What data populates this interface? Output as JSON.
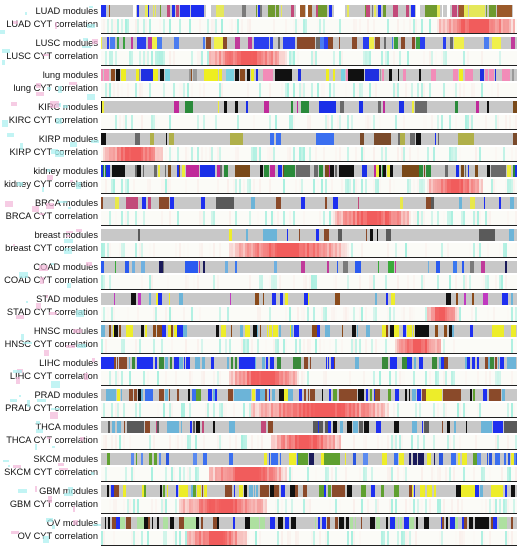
{
  "blocks": [
    {
      "id": "luad",
      "modules_label": "LUAD modules",
      "cyt_label": "LUAD CYT correlation",
      "palette": [
        "#1e2ff0",
        "#e5e85a",
        "#7a7a7a",
        "#6f9a2f",
        "#9b5a2a",
        "#c24a7a",
        "#ffffff"
      ],
      "hot": [
        [
          0.8,
          1.0
        ]
      ]
    },
    {
      "id": "lusc",
      "modules_label": "LUSC modules",
      "cyt_label": "LUSC CYT correlation",
      "palette": [
        "#2a3ff0",
        "#4a7cf0",
        "#f0f04a",
        "#6a6a6a",
        "#c03a9a",
        "#8a4a2a",
        "#3aa040"
      ],
      "hot": [
        [
          0.25,
          0.45
        ]
      ]
    },
    {
      "id": "lung",
      "modules_label": "lung modules",
      "cyt_label": "lung CYT correlation",
      "palette": [
        "#eeee20",
        "#1f2fe0",
        "#8a4a1f",
        "#111111",
        "#f28cb8",
        "#7ad2e0",
        "#9a9a9a"
      ],
      "hot": []
    },
    {
      "id": "kirc",
      "modules_label": "KIRC modules",
      "cyt_label": "KIRC CYT correlation",
      "palette": [
        "#1a2fe8",
        "#2a8a3a",
        "#eded3a",
        "#7a4a1a",
        "#c02a9a",
        "#111111",
        "#6a6a6a"
      ],
      "hot": []
    },
    {
      "id": "kirp",
      "modules_label": "KIRP modules",
      "cyt_label": "KIRP CYT correlation",
      "palette": [
        "#1a2ff0",
        "#3a6ff0",
        "#5fa030",
        "#7a4a2a",
        "#b0b04a",
        "#6a6a6a",
        "#111111"
      ],
      "hot": [
        [
          0.0,
          0.15
        ]
      ]
    },
    {
      "id": "kidney",
      "modules_label": "kidney modules",
      "cyt_label": "kidney CYT correlation",
      "palette": [
        "#1a2fe8",
        "#eded3a",
        "#2a8a3a",
        "#7a4a1a",
        "#c02a9a",
        "#111111",
        "#6a6a6a"
      ],
      "hot": [
        [
          0.78,
          0.92
        ]
      ]
    },
    {
      "id": "brca",
      "modules_label": "BRCA modules",
      "cyt_label": "BRCA CYT correlation",
      "palette": [
        "#1e2ff0",
        "#e8e84a",
        "#8a4a2a",
        "#6cb4d8",
        "#5a5a5a",
        "#c24a7a"
      ],
      "hot": [
        [
          0.55,
          0.75
        ]
      ]
    },
    {
      "id": "breast",
      "modules_label": "breast modules",
      "cyt_label": "breast CYT correlation",
      "palette": [
        "#1e2ff0",
        "#eded2a",
        "#6cb4d8",
        "#8a4a2a",
        "#5a5a5a",
        "#c24a7a",
        "#111111"
      ],
      "hot": [
        [
          0.3,
          0.6
        ]
      ]
    },
    {
      "id": "coad",
      "modules_label": "COAD modules",
      "cyt_label": "COAD CYT correlation",
      "palette": [
        "#2a5af0",
        "#3a78f0",
        "#6fb0e0",
        "#3aaa3a",
        "#1a1a5a",
        "#7a7a7a",
        "#c03a9a"
      ],
      "hot": []
    },
    {
      "id": "stad",
      "modules_label": "STAD modules",
      "cyt_label": "STAD CYT correlation",
      "palette": [
        "#1e2ff0",
        "#eded2a",
        "#8a4a1a",
        "#c03ac0",
        "#6cb4d8",
        "#111111"
      ],
      "hot": [
        [
          0.78,
          0.86
        ]
      ]
    },
    {
      "id": "hnsc",
      "modules_label": "HNSC modules",
      "cyt_label": "HNSC CYT correlation",
      "palette": [
        "#1e2ff0",
        "#eded2a",
        "#8a4a1a",
        "#6cb4d8",
        "#111111"
      ],
      "hot": [
        [
          0.7,
          0.82
        ]
      ]
    },
    {
      "id": "lihc",
      "modules_label": "LIHC modules",
      "cyt_label": "LIHC CYT correlation",
      "palette": [
        "#1e2ff0",
        "#8a4a2a",
        "#3a8a3a",
        "#6cb4d8"
      ],
      "hot": [
        [
          0.3,
          0.48
        ]
      ]
    },
    {
      "id": "prad",
      "modules_label": "PRAD modules",
      "cyt_label": "PRAD CYT correlation",
      "palette": [
        "#1e2ff0",
        "#3a6ff0",
        "#eded2a",
        "#8a4a2a",
        "#6cb4d8",
        "#5fa030",
        "#111111"
      ],
      "hot": [
        [
          0.35,
          0.7
        ]
      ]
    },
    {
      "id": "thca",
      "modules_label": "THCA modules",
      "cyt_label": "THCA CYT correlation",
      "palette": [
        "#1e2ff0",
        "#6cb4d8",
        "#8a4a2a",
        "#111111",
        "#5a5a5a",
        "#c24a7a"
      ],
      "hot": [
        [
          0.4,
          0.58
        ]
      ]
    },
    {
      "id": "skcm",
      "modules_label": "SKCM modules",
      "cyt_label": "SKCM CYT correlation",
      "palette": [
        "#3a6ff0",
        "#2a55e0",
        "#5a8af0",
        "#1a1a5a",
        "#5fa030",
        "#eded2a"
      ],
      "hot": [
        [
          0.25,
          0.45
        ]
      ]
    },
    {
      "id": "gbm",
      "modules_label": "GBM modules",
      "cyt_label": "GBM CYT correlation",
      "palette": [
        "#1e2ff0",
        "#eded2a",
        "#5fa030",
        "#8a4a2a",
        "#111111",
        "#6cb4d8"
      ],
      "hot": [
        [
          0.18,
          0.4
        ]
      ]
    },
    {
      "id": "ov",
      "modules_label": "OV modules",
      "cyt_label": "OV CYT correlation",
      "palette": [
        "#1e2ff0",
        "#8a4a2a",
        "#aee0a0",
        "#111111"
      ],
      "hot": [
        [
          0.2,
          0.35
        ]
      ]
    }
  ],
  "colors": {
    "module_background": "#c8c8c8",
    "correlation_positive": "#f04a4a",
    "correlation_negative": "#3ae0c0",
    "outside_pink": "#f2b6d8",
    "outside_cyan": "#a8f0f0"
  }
}
